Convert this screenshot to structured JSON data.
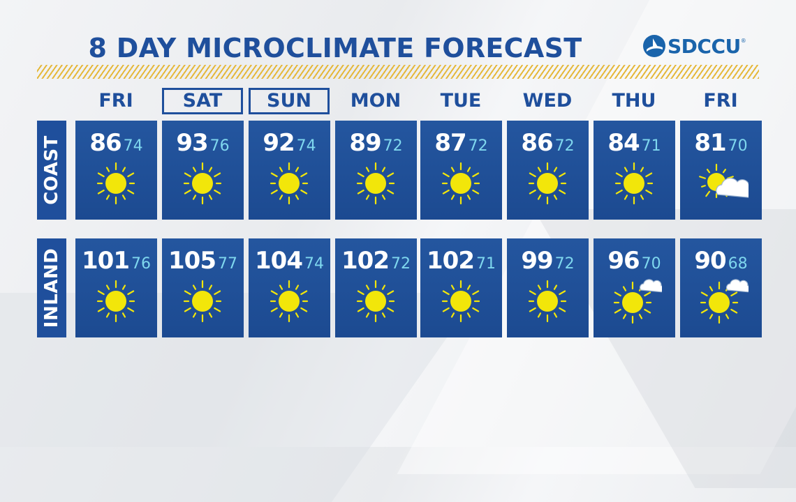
{
  "title": "8 DAY MICROCLIMATE FORECAST",
  "sponsor": {
    "name": "SDCCU",
    "mark": "®"
  },
  "colors": {
    "brand_blue": "#1f4f9c",
    "low_temp": "#7fd7ee",
    "sun": "#f2e60a",
    "stripe": "#e5b83a"
  },
  "days": [
    {
      "label": "FRI",
      "highlighted": false
    },
    {
      "label": "SAT",
      "highlighted": true
    },
    {
      "label": "SUN",
      "highlighted": true
    },
    {
      "label": "MON",
      "highlighted": false
    },
    {
      "label": "TUE",
      "highlighted": false
    },
    {
      "label": "WED",
      "highlighted": false
    },
    {
      "label": "THU",
      "highlighted": false
    },
    {
      "label": "FRI",
      "highlighted": false
    }
  ],
  "rows": [
    {
      "label": "COAST",
      "forecasts": [
        {
          "high": "86",
          "low": "74",
          "icon": "sun-icon"
        },
        {
          "high": "93",
          "low": "76",
          "icon": "sun-icon"
        },
        {
          "high": "92",
          "low": "74",
          "icon": "sun-icon"
        },
        {
          "high": "89",
          "low": "72",
          "icon": "sun-icon"
        },
        {
          "high": "87",
          "low": "72",
          "icon": "sun-icon"
        },
        {
          "high": "86",
          "low": "72",
          "icon": "sun-icon"
        },
        {
          "high": "84",
          "low": "71",
          "icon": "sun-icon"
        },
        {
          "high": "81",
          "low": "70",
          "icon": "partly-cloudy-icon"
        }
      ]
    },
    {
      "label": "INLAND",
      "forecasts": [
        {
          "high": "101",
          "low": "76",
          "icon": "sun-icon"
        },
        {
          "high": "105",
          "low": "77",
          "icon": "sun-icon"
        },
        {
          "high": "104",
          "low": "74",
          "icon": "sun-icon"
        },
        {
          "high": "102",
          "low": "72",
          "icon": "sun-icon"
        },
        {
          "high": "102",
          "low": "71",
          "icon": "sun-icon"
        },
        {
          "high": "99",
          "low": "72",
          "icon": "sun-icon"
        },
        {
          "high": "96",
          "low": "70",
          "icon": "mostly-sunny-icon"
        },
        {
          "high": "90",
          "low": "68",
          "icon": "mostly-sunny-icon"
        }
      ]
    }
  ]
}
